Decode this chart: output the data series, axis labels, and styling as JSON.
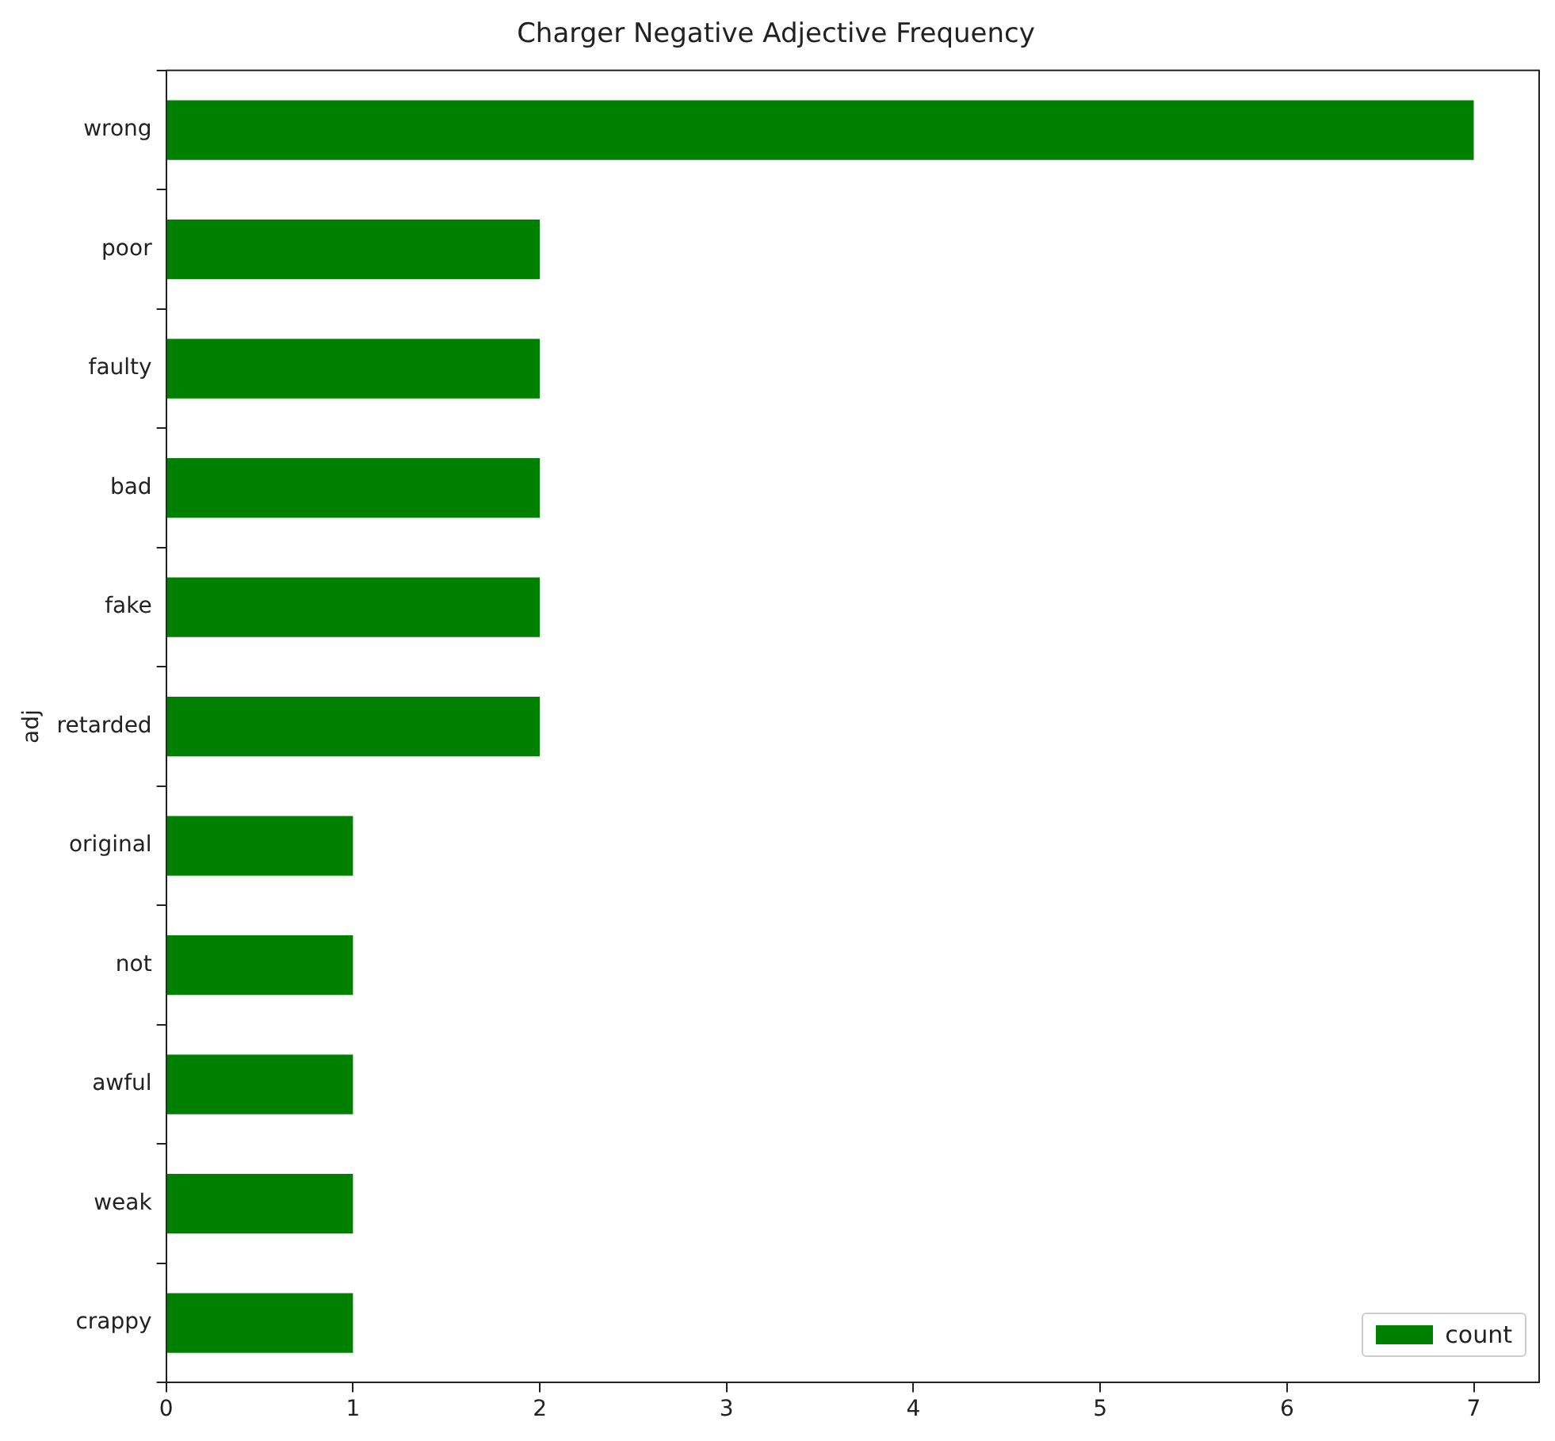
{
  "chart_data": {
    "type": "bar",
    "orientation": "horizontal",
    "title": "Charger Negative Adjective Frequency",
    "ylabel": "adj",
    "categories": [
      "wrong",
      "poor",
      "faulty",
      "bad",
      "fake",
      "retarded",
      "original",
      "not",
      "awful",
      "weak",
      "crappy"
    ],
    "series": [
      {
        "name": "count",
        "color": "#008000",
        "values": [
          7,
          2,
          2,
          2,
          2,
          2,
          1,
          1,
          1,
          1,
          1
        ]
      }
    ],
    "xlim": [
      0,
      7.35
    ],
    "xticks": [
      0,
      1,
      2,
      3,
      4,
      5,
      6,
      7
    ],
    "grid": false,
    "legend": "bottom right"
  }
}
